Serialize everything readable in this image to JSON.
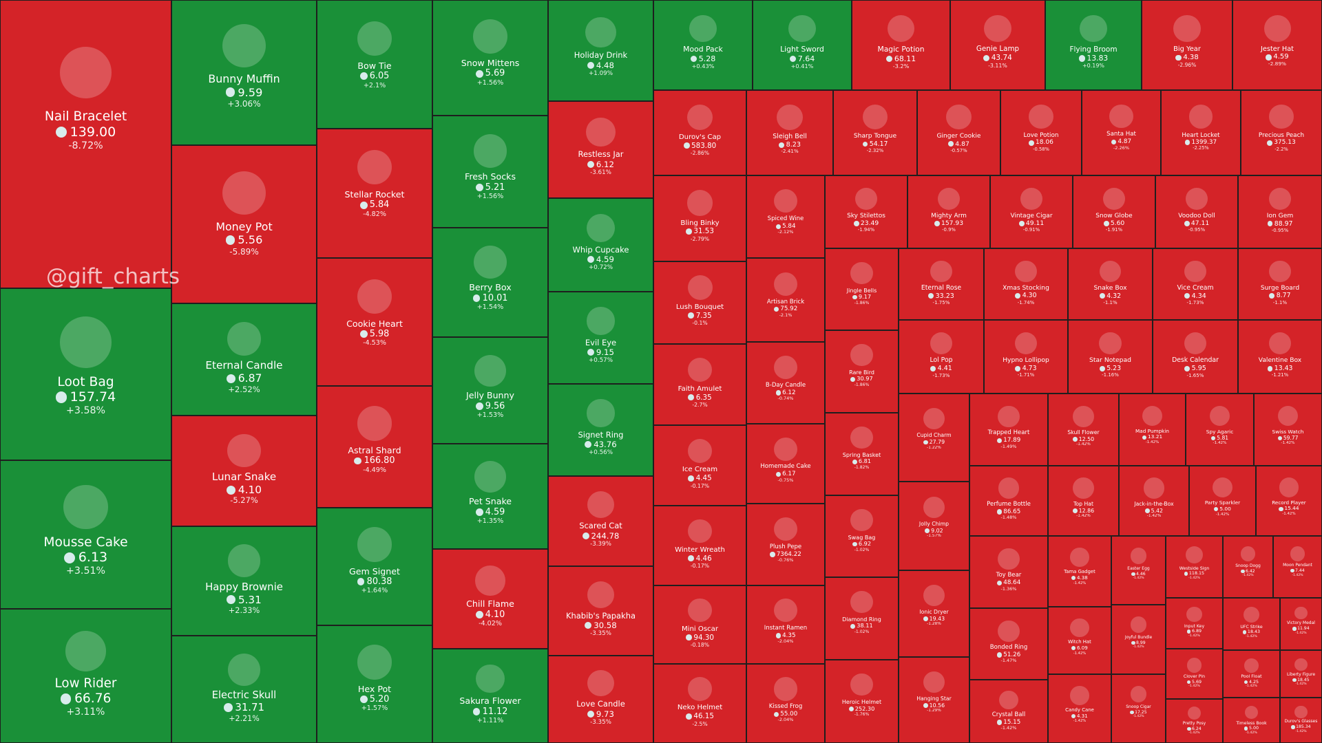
{
  "chart_data": {
    "type": "treemap",
    "watermark": "@gift_charts",
    "tiles": [
      {
        "name": "Nail Bracelet",
        "price": "139.00",
        "change": "-8.72%"
      },
      {
        "name": "Loot Bag",
        "price": "157.74",
        "change": "+3.58%"
      },
      {
        "name": "Mousse Cake",
        "price": "6.13",
        "change": "+3.51%"
      },
      {
        "name": "Low Rider",
        "price": "66.76",
        "change": "+3.11%"
      },
      {
        "name": "Bunny Muffin",
        "price": "9.59",
        "change": "+3.06%"
      },
      {
        "name": "Money Pot",
        "price": "5.56",
        "change": "-5.89%"
      },
      {
        "name": "Eternal Candle",
        "price": "6.87",
        "change": "+2.52%"
      },
      {
        "name": "Lunar Snake",
        "price": "4.10",
        "change": "-5.27%"
      },
      {
        "name": "Happy Brownie",
        "price": "5.31",
        "change": "+2.33%"
      },
      {
        "name": "Electric Skull",
        "price": "31.71",
        "change": "+2.21%"
      },
      {
        "name": "Bow Tie",
        "price": "6.05",
        "change": "+2.1%"
      },
      {
        "name": "Stellar Rocket",
        "price": "5.84",
        "change": "-4.82%"
      },
      {
        "name": "Cookie Heart",
        "price": "5.98",
        "change": "-4.53%"
      },
      {
        "name": "Astral Shard",
        "price": "166.80",
        "change": "-4.49%"
      },
      {
        "name": "Gem Signet",
        "price": "80.38",
        "change": "+1.64%"
      },
      {
        "name": "Hex Pot",
        "price": "5.20",
        "change": "+1.57%"
      },
      {
        "name": "Snow Mittens",
        "price": "5.69",
        "change": "+1.56%"
      },
      {
        "name": "Fresh Socks",
        "price": "5.21",
        "change": "+1.56%"
      },
      {
        "name": "Berry Box",
        "price": "10.01",
        "change": "+1.54%"
      },
      {
        "name": "Jelly Bunny",
        "price": "9.56",
        "change": "+1.53%"
      },
      {
        "name": "Pet Snake",
        "price": "4.59",
        "change": "+1.35%"
      },
      {
        "name": "Chill Flame",
        "price": "4.10",
        "change": "-4.02%"
      },
      {
        "name": "Sakura Flower",
        "price": "11.12",
        "change": "+1.11%"
      },
      {
        "name": "Holiday Drink",
        "price": "4.48",
        "change": "+1.09%"
      },
      {
        "name": "Restless Jar",
        "price": "6.12",
        "change": "-3.61%"
      },
      {
        "name": "Whip Cupcake",
        "price": "4.59",
        "change": "+0.72%"
      },
      {
        "name": "Evil Eye",
        "price": "9.15",
        "change": "+0.57%"
      },
      {
        "name": "Signet Ring",
        "price": "43.76",
        "change": "+0.56%"
      },
      {
        "name": "Scared Cat",
        "price": "244.78",
        "change": "-3.39%"
      },
      {
        "name": "Khabib's Papakha",
        "price": "30.58",
        "change": "-3.35%"
      },
      {
        "name": "Love Candle",
        "price": "9.73",
        "change": "-3.35%"
      },
      {
        "name": "Mood Pack",
        "price": "5.28",
        "change": "+0.43%"
      },
      {
        "name": "Light Sword",
        "price": "7.64",
        "change": "+0.41%"
      },
      {
        "name": "Magic Potion",
        "price": "68.11",
        "change": "-3.2%"
      },
      {
        "name": "Genie Lamp",
        "price": "43.74",
        "change": "-3.11%"
      },
      {
        "name": "Flying Broom",
        "price": "13.83",
        "change": "+0.19%"
      },
      {
        "name": "Big Year",
        "price": "4.38",
        "change": "-2.96%"
      },
      {
        "name": "Jester Hat",
        "price": "4.59",
        "change": "-2.89%"
      },
      {
        "name": "Durov's Cap",
        "price": "583.80",
        "change": "-2.86%"
      },
      {
        "name": "Bling Binky",
        "price": "31.53",
        "change": "-2.79%"
      },
      {
        "name": "Lush Bouquet",
        "price": "7.35",
        "change": "-0.1%"
      },
      {
        "name": "Faith Amulet",
        "price": "6.35",
        "change": "-2.7%"
      },
      {
        "name": "Ice Cream",
        "price": "4.45",
        "change": "-0.17%"
      },
      {
        "name": "Winter Wreath",
        "price": "4.46",
        "change": "-0.17%"
      },
      {
        "name": "Mini Oscar",
        "price": "94.30",
        "change": "-0.18%"
      },
      {
        "name": "Neko Helmet",
        "price": "46.15",
        "change": "-2.5%"
      },
      {
        "name": "Sleigh Bell",
        "price": "8.23",
        "change": "-2.41%"
      },
      {
        "name": "Sharp Tongue",
        "price": "54.17",
        "change": "-2.32%"
      },
      {
        "name": "Ginger Cookie",
        "price": "4.87",
        "change": "-0.57%"
      },
      {
        "name": "Love Potion",
        "price": "18.06",
        "change": "-0.58%"
      },
      {
        "name": "Santa Hat",
        "price": "4.87",
        "change": "-2.26%"
      },
      {
        "name": "Heart Locket",
        "price": "1399.37",
        "change": "-2.25%"
      },
      {
        "name": "Precious Peach",
        "price": "375.13",
        "change": "-2.2%"
      },
      {
        "name": "Spiced Wine",
        "price": "5.84",
        "change": "-2.12%"
      },
      {
        "name": "Artisan Brick",
        "price": "75.92",
        "change": "-2.1%"
      },
      {
        "name": "B-Day Candle",
        "price": "6.12",
        "change": "-0.74%"
      },
      {
        "name": "Homemade Cake",
        "price": "6.17",
        "change": "-0.75%"
      },
      {
        "name": "Plush Pepe",
        "price": "7364.22",
        "change": "-0.76%"
      },
      {
        "name": "Instant Ramen",
        "price": "4.35",
        "change": "-2.04%"
      },
      {
        "name": "Kissed Frog",
        "price": "55.00",
        "change": "-2.04%"
      },
      {
        "name": "Sky Stilettos",
        "price": "23.49",
        "change": "-1.94%"
      },
      {
        "name": "Mighty Arm",
        "price": "157.93",
        "change": "-0.9%"
      },
      {
        "name": "Vintage Cigar",
        "price": "49.11",
        "change": "-0.91%"
      },
      {
        "name": "Snow Globe",
        "price": "5.60",
        "change": "-1.91%"
      },
      {
        "name": "Voodoo Doll",
        "price": "47.11",
        "change": "-0.95%"
      },
      {
        "name": "Ion Gem",
        "price": "88.97",
        "change": "-0.95%"
      },
      {
        "name": "Jingle Bells",
        "price": "9.17",
        "change": "-1.86%"
      },
      {
        "name": "Rare Bird",
        "price": "30.97",
        "change": "-1.86%"
      },
      {
        "name": "Spring Basket",
        "price": "6.81",
        "change": "-1.82%"
      },
      {
        "name": "Swag Bag",
        "price": "6.92",
        "change": "-1.02%"
      },
      {
        "name": "Diamond Ring",
        "price": "38.11",
        "change": "-1.02%"
      },
      {
        "name": "Heroic Helmet",
        "price": "252.30",
        "change": "-1.76%"
      },
      {
        "name": "Eternal Rose",
        "price": "33.23",
        "change": "-1.75%"
      },
      {
        "name": "Xmas Stocking",
        "price": "4.30",
        "change": "-1.74%"
      },
      {
        "name": "Snake Box",
        "price": "4.32",
        "change": "-1.1%"
      },
      {
        "name": "Vice Cream",
        "price": "4.34",
        "change": "-1.73%"
      },
      {
        "name": "Surge Board",
        "price": "8.77",
        "change": "-1.1%"
      },
      {
        "name": "Lol Pop",
        "price": "4.41",
        "change": "-1.73%"
      },
      {
        "name": "Hypno Lollipop",
        "price": "4.73",
        "change": "-1.71%"
      },
      {
        "name": "Star Notepad",
        "price": "5.23",
        "change": "-1.16%"
      },
      {
        "name": "Desk Calendar",
        "price": "5.95",
        "change": "-1.65%"
      },
      {
        "name": "Valentine Box",
        "price": "13.43",
        "change": "-1.21%"
      },
      {
        "name": "Cupid Charm",
        "price": "27.79",
        "change": "-1.22%"
      },
      {
        "name": "Jolly Chimp",
        "price": "9.02",
        "change": "-1.57%"
      },
      {
        "name": "Ionic Dryer",
        "price": "19.43",
        "change": "-1.28%"
      },
      {
        "name": "Hanging Star",
        "price": "10.56",
        "change": "-1.29%"
      },
      {
        "name": "Trapped Heart",
        "price": "17.89",
        "change": "-1.49%"
      },
      {
        "name": "Skull Flower",
        "price": "12.50",
        "change": "-1.42%"
      },
      {
        "name": "Mad Pumpkin",
        "price": "13.21",
        "change": "-1.42%"
      },
      {
        "name": "Spy Agaric",
        "price": "5.81",
        "change": "-1.42%"
      },
      {
        "name": "Swiss Watch",
        "price": "59.77",
        "change": "-1.42%"
      },
      {
        "name": "Perfume Bottle",
        "price": "86.65",
        "change": "-1.48%"
      },
      {
        "name": "Top Hat",
        "price": "12.86",
        "change": "-1.42%"
      },
      {
        "name": "Jack-in-the-Box",
        "price": "5.42",
        "change": "-1.42%"
      },
      {
        "name": "Party Sparkler",
        "price": "5.00",
        "change": "-1.42%"
      },
      {
        "name": "Record Player",
        "price": "15.44",
        "change": "-1.42%"
      },
      {
        "name": "Toy Bear",
        "price": "48.64",
        "change": "-1.36%"
      },
      {
        "name": "Bonded Ring",
        "price": "51.26",
        "change": "-1.47%"
      },
      {
        "name": "Crystal Ball",
        "price": "15.15",
        "change": "-1.42%"
      },
      {
        "name": "Tama Gadget",
        "price": "4.38",
        "change": "-1.42%"
      },
      {
        "name": "Witch Hat",
        "price": "6.09",
        "change": "-1.42%"
      },
      {
        "name": "Candy Cane",
        "price": "4.31",
        "change": "-1.42%"
      },
      {
        "name": "Easter Egg",
        "price": "4.46",
        "change": "-1.42%"
      },
      {
        "name": "Joyful Bundle",
        "price": "8.99",
        "change": "-1.42%"
      },
      {
        "name": "Snoop Cigar",
        "price": "17.25",
        "change": "-1.42%"
      },
      {
        "name": "Westside Sign",
        "price": "118.15",
        "change": "-1.42%"
      },
      {
        "name": "Snoop Dogg",
        "price": "6.42",
        "change": "-1.42%"
      },
      {
        "name": "Moon Pendant",
        "price": "7.44",
        "change": "-1.42%"
      },
      {
        "name": "Input Key",
        "price": "6.89",
        "change": "-1.42%"
      },
      {
        "name": "UFC Strike",
        "price": "18.43",
        "change": "-1.42%"
      },
      {
        "name": "Victory Medal",
        "price": "11.94",
        "change": "-1.42%"
      },
      {
        "name": "Clover Pin",
        "price": "5.69",
        "change": "-1.42%"
      },
      {
        "name": "Pool Float",
        "price": "4.25",
        "change": "-1.42%"
      },
      {
        "name": "Liberty Figure",
        "price": "18.45",
        "change": "-1.42%"
      },
      {
        "name": "Pretty Posy",
        "price": "6.24",
        "change": "-1.42%"
      },
      {
        "name": "Timeless Book",
        "price": "5.00",
        "change": "-1.42%"
      },
      {
        "name": "Durov's Glasses",
        "price": "185.34",
        "change": "-1.42%"
      }
    ]
  }
}
